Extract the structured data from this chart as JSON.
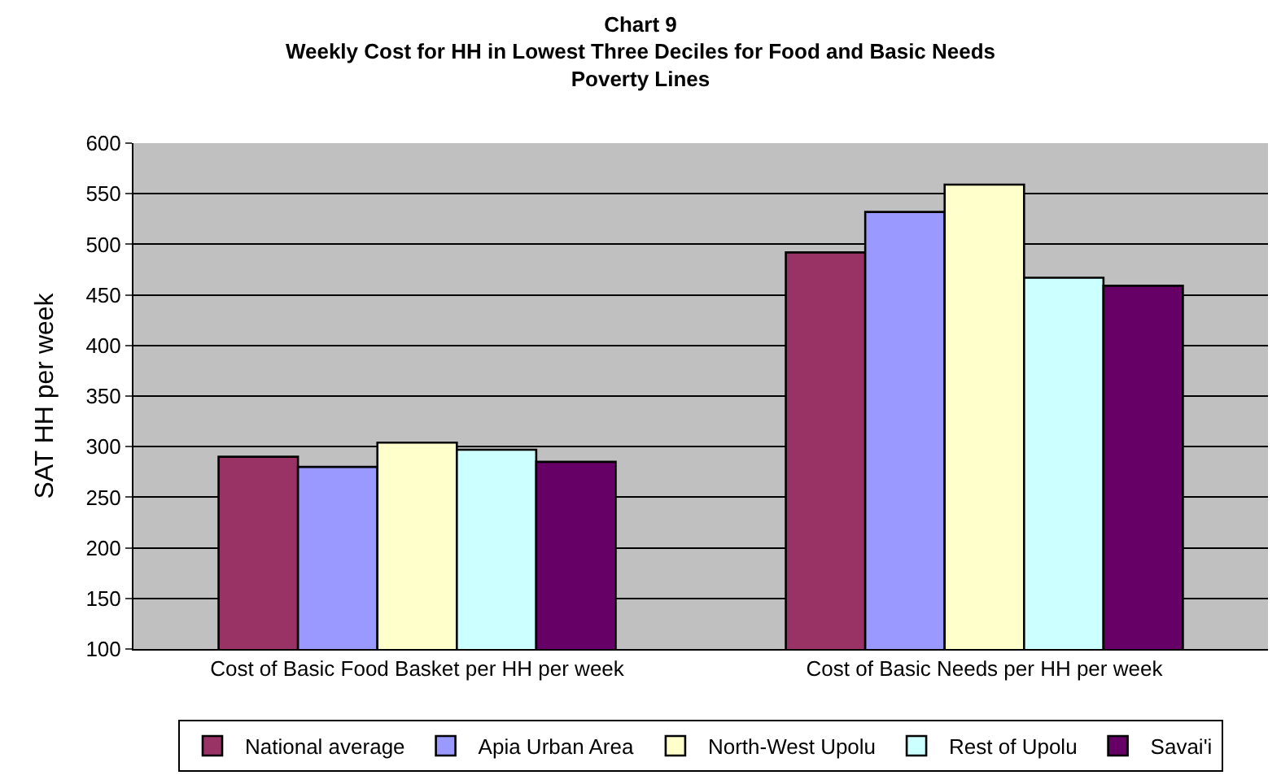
{
  "chart_data": {
    "type": "bar",
    "title": "Chart 9\nWeekly Cost for HH in Lowest Three Deciles for Food and Basic Needs\nPoverty Lines",
    "ylabel": "SAT HH per week",
    "categories": [
      "Cost of Basic Food Basket per HH per week",
      "Cost of Basic Needs per HH per week"
    ],
    "series": [
      {
        "name": "National average",
        "color": "#993366",
        "values": [
          290,
          492
        ]
      },
      {
        "name": "Apia Urban Area",
        "color": "#9999ff",
        "values": [
          280,
          532
        ]
      },
      {
        "name": "North-West Upolu",
        "color": "#ffffcc",
        "values": [
          304,
          559
        ]
      },
      {
        "name": "Rest of Upolu",
        "color": "#ccffff",
        "values": [
          297,
          467
        ]
      },
      {
        "name": "Savai'i",
        "color": "#660066",
        "values": [
          285,
          459
        ]
      }
    ],
    "ylim": [
      100,
      600
    ],
    "yticks": [
      100,
      150,
      200,
      250,
      300,
      350,
      400,
      450,
      500,
      550,
      600
    ],
    "grid": "y",
    "legend": "bottom"
  }
}
